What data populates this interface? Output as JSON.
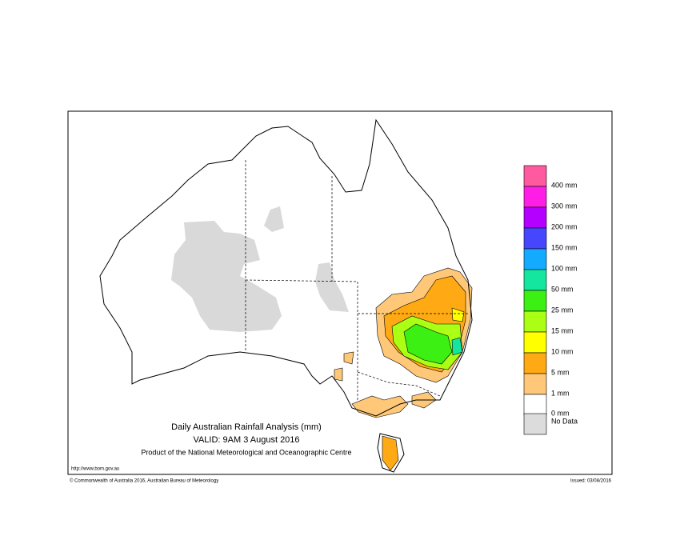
{
  "header": {
    "title": "Daily Australian Rainfall Analysis (mm)",
    "valid": "VALID: 9AM  3 August 2016",
    "product": "Product of the National Meteorological and Oceanographic Centre"
  },
  "legend": {
    "colors": [
      "#ff5aa0",
      "#ff1ee6",
      "#b400ff",
      "#4646ff",
      "#14aaff",
      "#14e6a0",
      "#3cf014",
      "#aaff14",
      "#ffff00",
      "#ffaa14",
      "#ffc878",
      "#ffffff",
      "#dcdcdc"
    ],
    "labels": [
      "400 mm",
      "300 mm",
      "200 mm",
      "150 mm",
      "100 mm",
      "50 mm",
      "25 mm",
      "15 mm",
      "10 mm",
      "5 mm",
      "1 mm",
      "0 mm"
    ],
    "no_data_label": "No Data"
  },
  "footer": {
    "url": "http://www.bom.gov.au",
    "copyright": "© Commonwealth of Australia 2016, Australian Bureau of Meteorology",
    "issued": "Issued: 03/08/2016"
  }
}
